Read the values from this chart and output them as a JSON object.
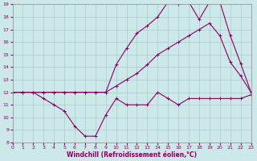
{
  "xlabel": "Windchill (Refroidissement éolien,°C)",
  "background_color": "#cce8e8",
  "grid_color": "#aacccc",
  "line_color": "#880066",
  "xlim": [
    0,
    23
  ],
  "ylim": [
    8,
    19
  ],
  "xticks": [
    0,
    1,
    2,
    3,
    4,
    5,
    6,
    7,
    8,
    9,
    10,
    11,
    12,
    13,
    14,
    15,
    16,
    17,
    18,
    19,
    20,
    21,
    22,
    23
  ],
  "yticks": [
    8,
    9,
    10,
    11,
    12,
    13,
    14,
    15,
    16,
    17,
    18,
    19
  ],
  "line1_x": [
    0,
    1,
    2,
    3,
    4,
    5,
    6,
    7,
    8,
    9,
    10,
    11,
    12,
    13,
    14,
    15,
    16,
    17,
    18,
    19,
    20,
    21,
    22,
    23
  ],
  "line1_y": [
    12,
    12,
    12,
    11.5,
    11.0,
    10.5,
    9.3,
    8.5,
    8.5,
    10.2,
    11.5,
    11.0,
    11.0,
    11.0,
    12.0,
    11.5,
    11.0,
    11.5,
    11.5,
    11.5,
    11.5,
    11.5,
    11.5,
    11.8
  ],
  "line2_x": [
    0,
    1,
    2,
    3,
    4,
    5,
    6,
    7,
    8,
    9,
    10,
    11,
    12,
    13,
    14,
    15,
    16,
    17,
    18,
    19,
    20,
    21,
    22,
    23
  ],
  "line2_y": [
    12,
    12,
    12,
    12,
    12,
    12,
    12,
    12,
    12,
    12,
    12.5,
    13.0,
    13.5,
    14.2,
    15.0,
    15.5,
    16.0,
    16.5,
    17.0,
    17.5,
    16.5,
    14.4,
    13.3,
    12.0
  ],
  "line3_x": [
    0,
    1,
    2,
    3,
    4,
    5,
    6,
    7,
    8,
    9,
    10,
    11,
    12,
    13,
    14,
    15,
    16,
    17,
    18,
    19,
    20,
    21,
    22,
    23
  ],
  "line3_y": [
    12,
    12,
    12,
    12,
    12,
    12,
    12,
    12,
    12,
    12,
    14.2,
    15.5,
    16.7,
    17.3,
    18.0,
    19.2,
    19.0,
    19.2,
    17.8,
    19.2,
    19.2,
    16.5,
    14.3,
    12.0
  ]
}
